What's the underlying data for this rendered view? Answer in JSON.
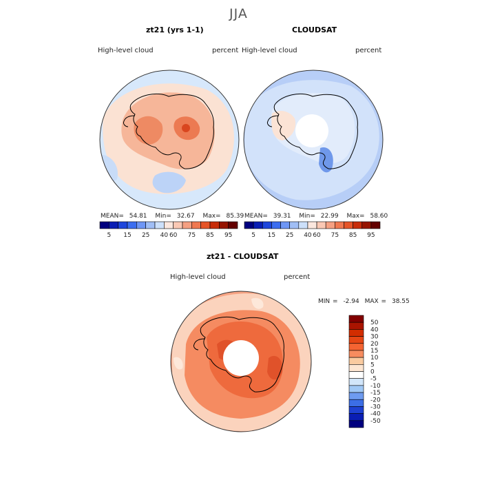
{
  "page": {
    "title": "JJA"
  },
  "panels": [
    {
      "title": "zt21 (yrs 1-1)",
      "variable": "High-level cloud",
      "units": "percent",
      "stats": {
        "mean_label": "MEAN=",
        "mean": "54.81",
        "min_label": "Min=",
        "min": "32.67",
        "max_label": "Max=",
        "max": "85.39"
      }
    },
    {
      "title": "CLOUDSAT",
      "variable": "High-level cloud",
      "units": "percent",
      "stats": {
        "mean_label": "MEAN=",
        "mean": "39.31",
        "min_label": "Min=",
        "min": "22.99",
        "max_label": "Max=",
        "max": "58.60"
      }
    },
    {
      "title": "zt21 - CLOUDSAT",
      "variable": "High-level cloud",
      "units": "percent",
      "stats": {
        "min_label": "MIN =",
        "min": "-2.94",
        "max_label": "MAX =",
        "max": "38.55"
      }
    }
  ],
  "chart_data": [
    {
      "type": "heatmap",
      "title": "zt21 (yrs 1-1)",
      "subtitle": "High-level cloud (percent)",
      "projection": "south polar stereographic",
      "colorbar": {
        "orientation": "horizontal",
        "tick_labels": [
          "5",
          "15",
          "25",
          "40",
          "60",
          "75",
          "85",
          "95"
        ],
        "colors": [
          "#00007f",
          "#0a1eb4",
          "#1e46dc",
          "#3c6ef0",
          "#6e96f5",
          "#a0bef5",
          "#cce0fa",
          "#fbe7de",
          "#fac8b4",
          "#f5a082",
          "#f07850",
          "#e65528",
          "#c82d0a",
          "#961400",
          "#640000"
        ]
      },
      "stats": {
        "mean": 54.81,
        "min": 32.67,
        "max": 85.39
      },
      "dominant_levels": {
        "ocean_north": "40-60",
        "circumpolar_band": "60-75",
        "plateau_maxima": "75-85"
      }
    },
    {
      "type": "heatmap",
      "title": "CLOUDSAT",
      "subtitle": "High-level cloud (percent)",
      "projection": "south polar stereographic",
      "colorbar": {
        "orientation": "horizontal",
        "tick_labels": [
          "5",
          "15",
          "25",
          "40",
          "60",
          "75",
          "85",
          "95"
        ],
        "colors": [
          "#00007f",
          "#0a1eb4",
          "#1e46dc",
          "#3c6ef0",
          "#6e96f5",
          "#a0bef5",
          "#cce0fa",
          "#fbe7de",
          "#fac8b4",
          "#f5a082",
          "#f07850",
          "#e65528",
          "#c82d0a",
          "#961400",
          "#640000"
        ]
      },
      "stats": {
        "mean": 39.31,
        "min": 22.99,
        "max": 58.6
      },
      "missing_region": "circular gap near south pole",
      "dominant_levels": {
        "ocean": "25-40",
        "antarctica": "40-60"
      }
    },
    {
      "type": "heatmap",
      "title": "zt21 - CLOUDSAT",
      "subtitle": "High-level cloud (percent)",
      "projection": "south polar stereographic",
      "colorbar": {
        "orientation": "vertical",
        "tick_labels": [
          "50",
          "40",
          "30",
          "20",
          "15",
          "10",
          "5",
          "0",
          "-5",
          "-10",
          "-15",
          "-20",
          "-30",
          "-40",
          "-50"
        ],
        "colors": [
          "#820000",
          "#aa1400",
          "#d22d00",
          "#e64614",
          "#f56432",
          "#f78c5f",
          "#facba0",
          "#fde6d2",
          "#ffffff",
          "#d2e6fa",
          "#a0c8f5",
          "#6e9bf0",
          "#3c6ee6",
          "#1e41d2",
          "#0a1eb4",
          "#00007f"
        ]
      },
      "stats": {
        "min": -2.94,
        "max": 38.55
      },
      "missing_region": "circular gap near south pole",
      "dominant_levels": {
        "overall": "10-20",
        "continent": "15-30"
      }
    }
  ]
}
